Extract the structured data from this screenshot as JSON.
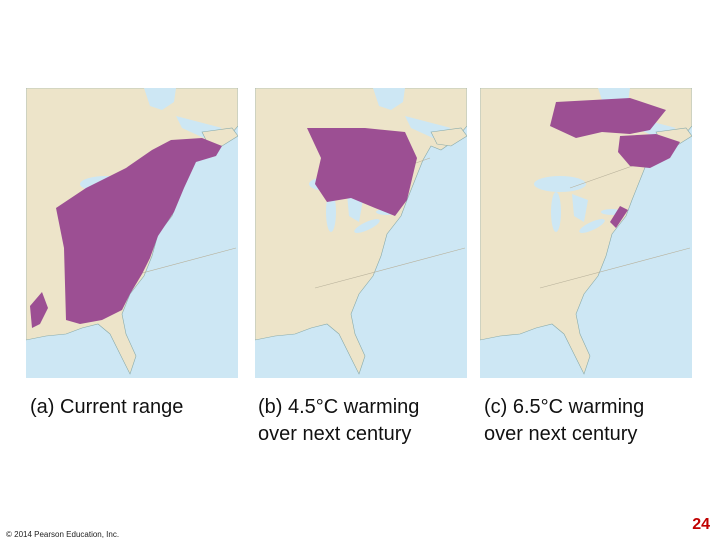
{
  "panels": [
    {
      "caption": [
        "(a) Current range"
      ]
    },
    {
      "caption": [
        "(b) 4.5°C warming",
        "over next century"
      ]
    },
    {
      "caption": [
        "(c) 6.5°C warming",
        "over next century"
      ]
    }
  ],
  "footer": {
    "copyright": "© 2014 Pearson Education, Inc.",
    "page_number": "24"
  }
}
